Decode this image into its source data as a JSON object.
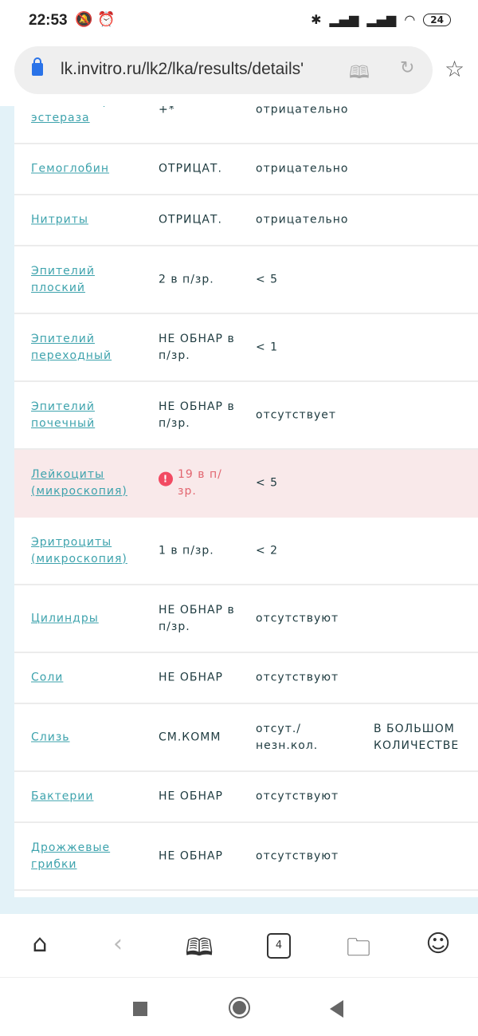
{
  "status_bar": {
    "time": "22:53",
    "battery": "24"
  },
  "browser": {
    "url": "lk.invitro.ru/lk2/lka/results/details'",
    "tab_count": "4"
  },
  "results": [
    {
      "name": "Лейкоцитарная эстераза",
      "value": "+*",
      "reference": "отрицательно",
      "comment": ""
    },
    {
      "name": "Гемоглобин",
      "value": "ОТРИЦАТ.",
      "reference": "отрицательно",
      "comment": ""
    },
    {
      "name": "Нитриты",
      "value": "ОТРИЦАТ.",
      "reference": "отрицательно",
      "comment": ""
    },
    {
      "name": "Эпителий плоский",
      "value": "2 в п/зр.",
      "reference": "< 5",
      "comment": ""
    },
    {
      "name": "Эпителий переходный",
      "value": "НЕ ОБНАР в п/зр.",
      "reference": "< 1",
      "comment": ""
    },
    {
      "name": "Эпителий почечный",
      "value": "НЕ ОБНАР в п/зр.",
      "reference": "отсутствует",
      "comment": ""
    },
    {
      "name": "Лейкоциты (микроскопия)",
      "value": "19 в п/ зр.",
      "reference": "< 5",
      "comment": "",
      "abnormal": true
    },
    {
      "name": "Эритроциты (микроскопия)",
      "value": "1 в п/зр.",
      "reference": "< 2",
      "comment": ""
    },
    {
      "name": "Цилиндры",
      "value": "НЕ ОБНАР в п/зр.",
      "reference": "отсутствуют",
      "comment": ""
    },
    {
      "name": "Соли",
      "value": "НЕ ОБНАР",
      "reference": "отсутствуют",
      "comment": ""
    },
    {
      "name": "Слизь",
      "value": "СМ.КОММ",
      "reference": "отсут./ незн.кол.",
      "comment": "В БОЛЬШОМ КОЛИЧЕСТВЕ"
    },
    {
      "name": "Бактерии",
      "value": "НЕ ОБНАР",
      "reference": "отсутствуют",
      "comment": ""
    },
    {
      "name": "Дрожжевые грибки",
      "value": "НЕ ОБНАР",
      "reference": "отсутствуют",
      "comment": ""
    }
  ],
  "colors": {
    "link": "#3ea3ad",
    "alert_bg": "#f9e9ea",
    "alert_text": "#e2656f",
    "alert_icon": "#f24a62"
  }
}
